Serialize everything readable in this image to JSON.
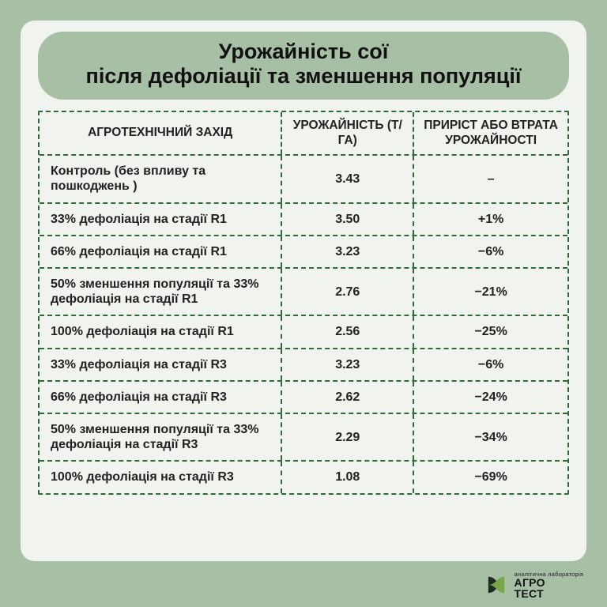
{
  "colors": {
    "page_bg": "#a7bfa5",
    "card_bg": "#f0f3ee",
    "dash_border": "#2f6b3a",
    "text": "#222222",
    "title_text": "#111111"
  },
  "title": {
    "line1": "Урожайність сої",
    "line2": "після дефоліації та зменшення популяції"
  },
  "table": {
    "columns": [
      "АГРОТЕХНІЧНИЙ ЗАХІД",
      "УРОЖАЙНІСТЬ (Т/ГА)",
      "ПРИРІСТ АБО ВТРАТА УРОЖАЙНОСТІ"
    ],
    "column_widths_pct": [
      46,
      25,
      29
    ],
    "rows": [
      {
        "label": "Контроль (без впливу та пошкоджень )",
        "yield": "3.43",
        "delta": "–"
      },
      {
        "label": "33% дефоліація на стадії R1",
        "yield": "3.50",
        "delta": "+1%"
      },
      {
        "label": "66% дефоліація на стадії R1",
        "yield": "3.23",
        "delta": "−6%"
      },
      {
        "label": "50% зменшення популяції та 33% дефоліація на стадії R1",
        "yield": "2.76",
        "delta": "−21%"
      },
      {
        "label": "100% дефоліація на стадії R1",
        "yield": "2.56",
        "delta": "−25%"
      },
      {
        "label": "33% дефоліація на стадії R3",
        "yield": "3.23",
        "delta": "−6%"
      },
      {
        "label": "66% дефоліація на стадії R3",
        "yield": "2.62",
        "delta": "−24%"
      },
      {
        "label": "50% зменшення популяції та 33% дефоліація на стадії R3",
        "yield": "2.29",
        "delta": "−34%"
      },
      {
        "label": "100% дефоліація на стадії R3",
        "yield": "1.08",
        "delta": "−69%"
      }
    ]
  },
  "logo": {
    "small_line": "аналітична лабораторія",
    "big_line1": "АГРО",
    "big_line2": "ТЕСТ",
    "mark_dark": "#1f2a22",
    "mark_green": "#7aa64a"
  }
}
